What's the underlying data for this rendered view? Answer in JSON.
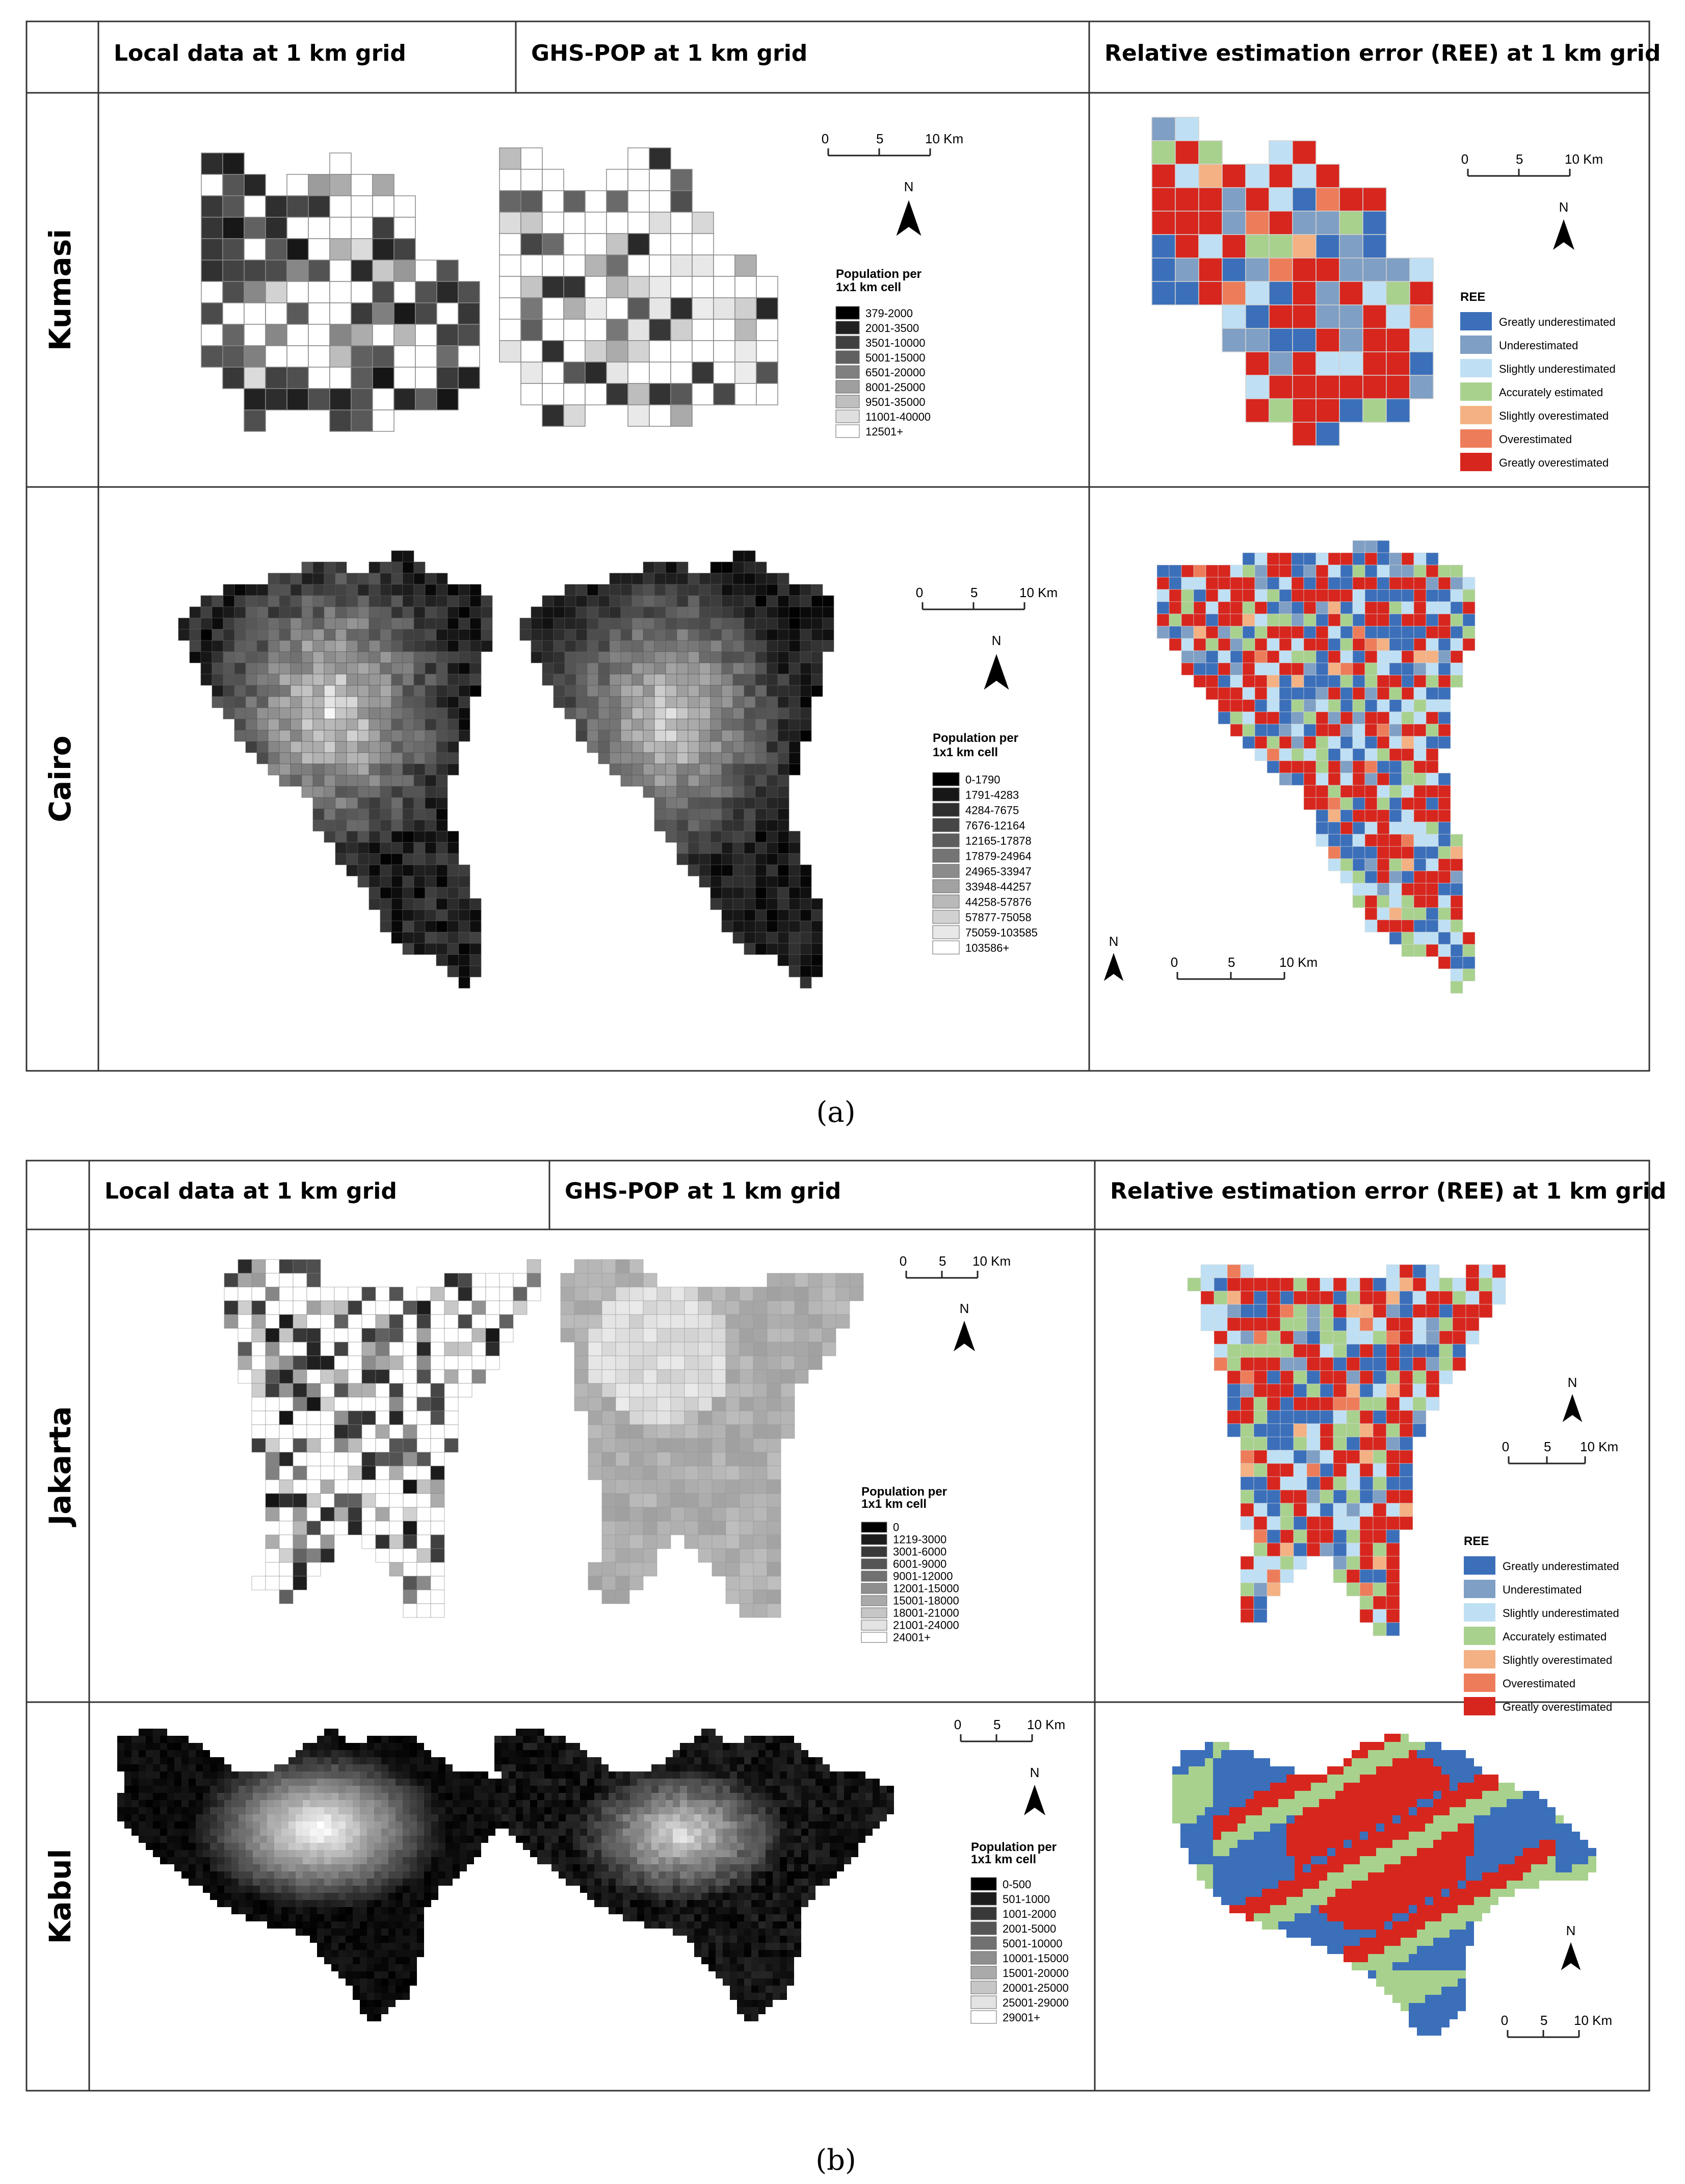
{
  "panels": [
    {
      "id": "a",
      "caption": "(a)",
      "headers": [
        "Local data at 1 km grid",
        "GHS-POP at 1 km grid",
        "Relative estimation error (REE) at 1 km grid"
      ],
      "rows": [
        {
          "city": "Kumasi",
          "scalebar_top": [
            "0",
            "5",
            "10 Km"
          ],
          "scalebar_ree": [
            "0",
            "5",
            "10 Km"
          ],
          "north": "N",
          "legend_title": [
            "Population per",
            "1x1 km cell"
          ],
          "legend_items": [
            "379-2000",
            "2001-3500",
            "3501-10000",
            "5001-15000",
            "6501-20000",
            "8001-25000",
            "9501-35000",
            "11001-40000",
            "12501+"
          ],
          "ree_title": "REE"
        },
        {
          "city": "Cairo",
          "scalebar_top": [
            "0",
            "5",
            "10 Km"
          ],
          "scalebar_ree": [
            "0",
            "5",
            "10 Km"
          ],
          "north": "N",
          "legend_title": [
            "Population per",
            "1x1 km cell"
          ],
          "legend_items": [
            "0-1790",
            "1791-4283",
            "4284-7675",
            "7676-12164",
            "12165-17878",
            "17879-24964",
            "24965-33947",
            "33948-44257",
            "44258-57876",
            "57877-75058",
            "75059-103585",
            "103586+"
          ],
          "ree_title": ""
        }
      ]
    },
    {
      "id": "b",
      "caption": "(b)",
      "headers": [
        "Local data at 1 km grid",
        "GHS-POP at 1 km grid",
        "Relative estimation error (REE) at 1 km grid"
      ],
      "rows": [
        {
          "city": "Jakarta",
          "scalebar_top": [
            "0",
            "5",
            "10 Km"
          ],
          "scalebar_ree": [
            "0",
            "5",
            "10 Km"
          ],
          "north": "N",
          "legend_title": [
            "Population per",
            "1x1 km cell"
          ],
          "legend_items": [
            "0",
            "1219-3000",
            "3001-6000",
            "6001-9000",
            "9001-12000",
            "12001-15000",
            "15001-18000",
            "18001-21000",
            "21001-24000",
            "24001+"
          ],
          "ree_title": "REE"
        },
        {
          "city": "Kabul",
          "scalebar_top": [
            "0",
            "5",
            "10 Km"
          ],
          "scalebar_ree": [
            "0",
            "5",
            "10 Km"
          ],
          "north": "N",
          "legend_title": [
            "Population per",
            "1x1 km cell"
          ],
          "legend_items": [
            "0-500",
            "501-1000",
            "1001-2000",
            "2001-5000",
            "5001-10000",
            "10001-15000",
            "15001-20000",
            "20001-25000",
            "25001-29000",
            "29001+"
          ],
          "ree_title": ""
        }
      ]
    }
  ],
  "ree_legend": [
    "Greatly underestimated",
    "Underestimated",
    "Slightly underestimated",
    "Accurately estimated",
    "Slightly overestimated",
    "Overestimated",
    "Greatly overestimated"
  ],
  "colors": {
    "ree": [
      "#3b6fba",
      "#7f9fc4",
      "#bfe0f4",
      "#a9d18e",
      "#f4b183",
      "#ed7d5a",
      "#d7261e"
    ],
    "grey_ramp_dark": "#000000",
    "grey_ramp_light": "#ffffff"
  }
}
